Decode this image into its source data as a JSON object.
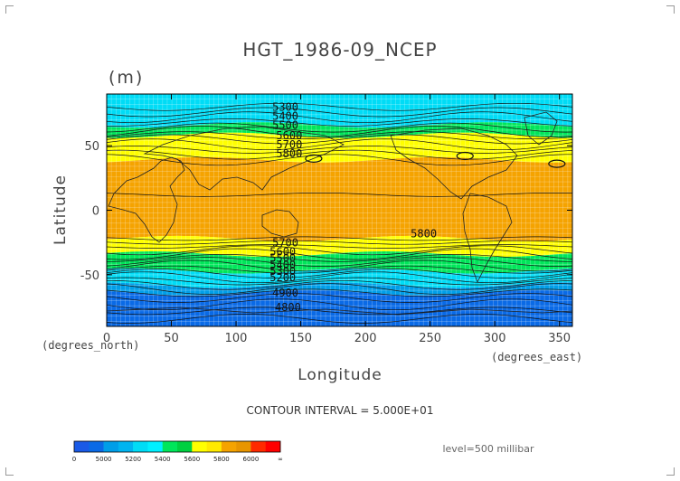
{
  "chart_data": {
    "type": "heatmap",
    "title": "HGT_1986-09_NCEP",
    "units": "(m)",
    "xlabel": "Longitude",
    "ylabel": "Latitude",
    "x_unit_label": "(degrees_east)",
    "y_unit_label": "(degrees_north)",
    "xlim": [
      0,
      360
    ],
    "ylim": [
      -90,
      90
    ],
    "x_ticks": [
      "0",
      "50",
      "100",
      "150",
      "200",
      "250",
      "300",
      "350"
    ],
    "y_ticks": [
      "50",
      "0",
      "-50"
    ],
    "contour_interval_label": "CONTOUR INTERVAL = 5.000E+01",
    "level_label": "level=500 millibar",
    "contour_labels": [
      "5300",
      "5400",
      "5500",
      "5600",
      "5700",
      "5800",
      "5800",
      "5700",
      "5600",
      "5500",
      "5400",
      "5300",
      "5200",
      "4900",
      "4800"
    ],
    "contour_label_positions_data": [
      {
        "text": "5300",
        "lon": 128,
        "lat": 77
      },
      {
        "text": "5400",
        "lon": 128,
        "lat": 70
      },
      {
        "text": "5500",
        "lon": 128,
        "lat": 63
      },
      {
        "text": "5600",
        "lon": 131,
        "lat": 55
      },
      {
        "text": "5700",
        "lon": 131,
        "lat": 48
      },
      {
        "text": "5800",
        "lon": 131,
        "lat": 41
      },
      {
        "text": "5800",
        "lon": 235,
        "lat": -21
      },
      {
        "text": "5700",
        "lon": 128,
        "lat": -28
      },
      {
        "text": "5600",
        "lon": 126,
        "lat": -35
      },
      {
        "text": "5500",
        "lon": 126,
        "lat": -40
      },
      {
        "text": "5400",
        "lon": 126,
        "lat": -45
      },
      {
        "text": "5300",
        "lon": 126,
        "lat": -50
      },
      {
        "text": "5200",
        "lon": 126,
        "lat": -55
      },
      {
        "text": "4900",
        "lon": 128,
        "lat": -67
      },
      {
        "text": "4800",
        "lon": 130,
        "lat": -78
      }
    ],
    "bands": [
      {
        "color": "#00dcf6",
        "lat_from": 90,
        "lat_to": 66
      },
      {
        "color": "#00e65a",
        "lat_from": 66,
        "lat_to": 58
      },
      {
        "color": "#ffff00",
        "lat_from": 58,
        "lat_to": 39
      },
      {
        "color": "#f5a300",
        "lat_from": 39,
        "lat_to": -22
      },
      {
        "color": "#ffff00",
        "lat_from": -22,
        "lat_to": -34
      },
      {
        "color": "#00e65a",
        "lat_from": -34,
        "lat_to": -47
      },
      {
        "color": "#00dcf6",
        "lat_from": -47,
        "lat_to": -58
      },
      {
        "color": "#009ee8",
        "lat_from": -58,
        "lat_to": -64
      },
      {
        "color": "#0a6ae6",
        "lat_from": -64,
        "lat_to": -90
      }
    ],
    "colorbar": {
      "labels": [
        "0",
        "5000",
        "5200",
        "5400",
        "5600",
        "5800",
        "6000",
        "∞"
      ],
      "colors": [
        "#1a5ae6",
        "#0a6ae6",
        "#009ee8",
        "#00b4f0",
        "#00dcf6",
        "#00f0ff",
        "#00e65a",
        "#00d040",
        "#ffff00",
        "#ffea00",
        "#f5a300",
        "#e89500",
        "#ff2a00",
        "#ff0000"
      ]
    }
  }
}
